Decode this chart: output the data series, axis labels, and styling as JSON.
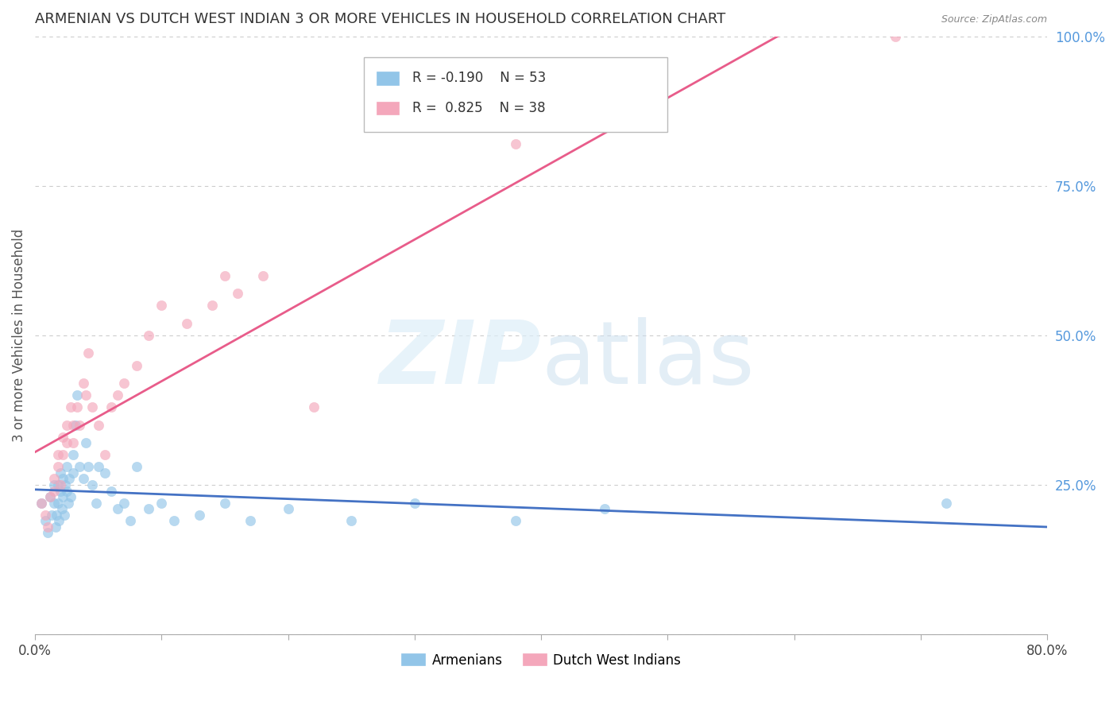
{
  "title": "ARMENIAN VS DUTCH WEST INDIAN 3 OR MORE VEHICLES IN HOUSEHOLD CORRELATION CHART",
  "source": "Source: ZipAtlas.com",
  "ylabel": "3 or more Vehicles in Household",
  "xlim": [
    0.0,
    0.8
  ],
  "ylim": [
    0.0,
    1.0
  ],
  "xticks": [
    0.0,
    0.1,
    0.2,
    0.3,
    0.4,
    0.5,
    0.6,
    0.7,
    0.8
  ],
  "yticks_right": [
    0.0,
    0.25,
    0.5,
    0.75,
    1.0
  ],
  "yticklabels_right": [
    "",
    "25.0%",
    "50.0%",
    "75.0%",
    "100.0%"
  ],
  "armenian_color": "#92c5e8",
  "armenian_color_edge": "#92c5e8",
  "dwi_color": "#f4a7bb",
  "dwi_color_edge": "#f4a7bb",
  "armenian_line_color": "#4472c4",
  "dwi_line_color": "#e85c8a",
  "R_armenian": -0.19,
  "N_armenian": 53,
  "R_dwi": 0.825,
  "N_dwi": 38,
  "legend_label_armenian": "Armenians",
  "legend_label_dwi": "Dutch West Indians",
  "armenian_x": [
    0.005,
    0.008,
    0.01,
    0.012,
    0.013,
    0.015,
    0.015,
    0.016,
    0.017,
    0.018,
    0.018,
    0.019,
    0.02,
    0.02,
    0.021,
    0.022,
    0.022,
    0.023,
    0.024,
    0.025,
    0.025,
    0.026,
    0.027,
    0.028,
    0.03,
    0.03,
    0.032,
    0.033,
    0.035,
    0.038,
    0.04,
    0.042,
    0.045,
    0.048,
    0.05,
    0.055,
    0.06,
    0.065,
    0.07,
    0.075,
    0.08,
    0.09,
    0.1,
    0.11,
    0.13,
    0.15,
    0.17,
    0.2,
    0.25,
    0.3,
    0.38,
    0.45,
    0.72
  ],
  "armenian_y": [
    0.22,
    0.19,
    0.17,
    0.23,
    0.2,
    0.25,
    0.22,
    0.18,
    0.2,
    0.25,
    0.22,
    0.19,
    0.27,
    0.24,
    0.21,
    0.26,
    0.23,
    0.2,
    0.25,
    0.28,
    0.24,
    0.22,
    0.26,
    0.23,
    0.3,
    0.27,
    0.35,
    0.4,
    0.28,
    0.26,
    0.32,
    0.28,
    0.25,
    0.22,
    0.28,
    0.27,
    0.24,
    0.21,
    0.22,
    0.19,
    0.28,
    0.21,
    0.22,
    0.19,
    0.2,
    0.22,
    0.19,
    0.21,
    0.19,
    0.22,
    0.19,
    0.21,
    0.22
  ],
  "dwi_x": [
    0.005,
    0.008,
    0.01,
    0.012,
    0.015,
    0.015,
    0.018,
    0.018,
    0.02,
    0.022,
    0.022,
    0.025,
    0.025,
    0.028,
    0.03,
    0.03,
    0.033,
    0.035,
    0.038,
    0.04,
    0.042,
    0.045,
    0.05,
    0.055,
    0.06,
    0.065,
    0.07,
    0.08,
    0.09,
    0.1,
    0.12,
    0.14,
    0.15,
    0.16,
    0.18,
    0.22,
    0.38,
    0.68
  ],
  "dwi_y": [
    0.22,
    0.2,
    0.18,
    0.23,
    0.26,
    0.24,
    0.28,
    0.3,
    0.25,
    0.33,
    0.3,
    0.32,
    0.35,
    0.38,
    0.32,
    0.35,
    0.38,
    0.35,
    0.42,
    0.4,
    0.47,
    0.38,
    0.35,
    0.3,
    0.38,
    0.4,
    0.42,
    0.45,
    0.5,
    0.55,
    0.52,
    0.55,
    0.6,
    0.57,
    0.6,
    0.38,
    0.82,
    1.0
  ],
  "background_color": "#ffffff",
  "grid_color": "#cccccc",
  "title_color": "#333333",
  "right_axis_color": "#5599dd",
  "marker_size": 80,
  "marker_alpha": 0.65
}
